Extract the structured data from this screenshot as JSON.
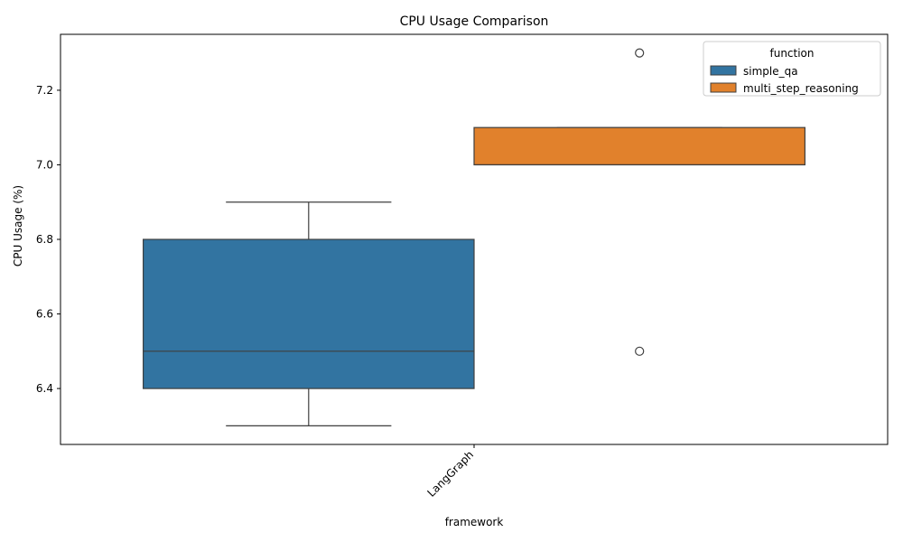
{
  "chart_data": {
    "type": "box",
    "title": "CPU Usage Comparison",
    "xlabel": "framework",
    "ylabel": "CPU Usage (%)",
    "categories": [
      "LangGraph"
    ],
    "ylim": [
      6.25,
      7.35
    ],
    "yticks": [
      6.4,
      6.6,
      6.8,
      7.0,
      7.2
    ],
    "grid": false,
    "legend": {
      "title": "function",
      "placement": "top-right"
    },
    "series": [
      {
        "name": "simple_qa",
        "color": "#3274a1",
        "boxes": [
          {
            "category": "LangGraph",
            "whisker_low": 6.3,
            "q1": 6.4,
            "median": 6.5,
            "q3": 6.8,
            "whisker_high": 6.9,
            "outliers": []
          }
        ]
      },
      {
        "name": "multi_step_reasoning",
        "color": "#e1812c",
        "boxes": [
          {
            "category": "LangGraph",
            "whisker_low": 7.0,
            "q1": 7.0,
            "median": 7.0,
            "q3": 7.1,
            "whisker_high": 7.1,
            "outliers": [
              6.5,
              7.3
            ]
          }
        ]
      }
    ]
  }
}
